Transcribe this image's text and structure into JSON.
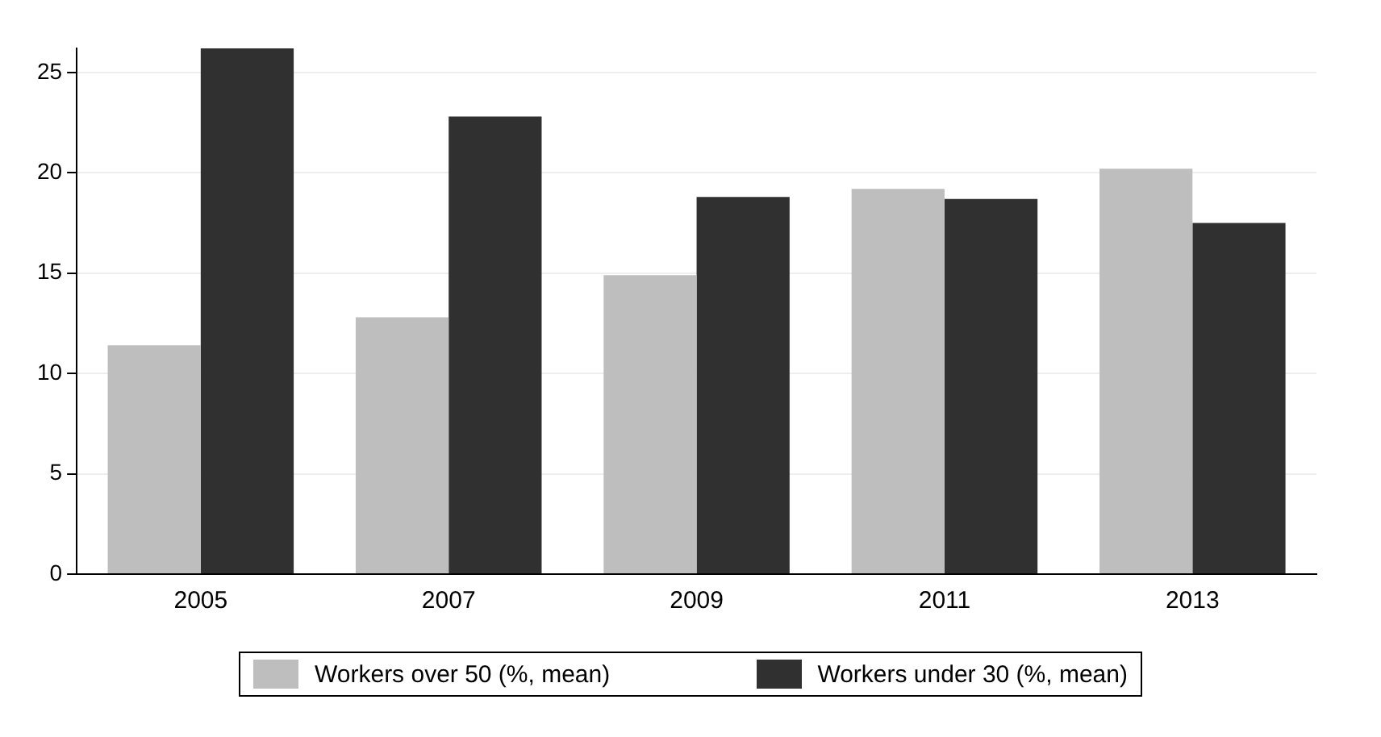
{
  "chart_data": {
    "type": "bar",
    "categories": [
      "2005",
      "2007",
      "2009",
      "2011",
      "2013"
    ],
    "series": [
      {
        "name": "Workers over 50 (%, mean)",
        "color": "#bebebe",
        "values": [
          11.4,
          12.8,
          14.9,
          19.2,
          20.2
        ]
      },
      {
        "name": "Workers under 30 (%, mean)",
        "color": "#303030",
        "values": [
          26.2,
          22.8,
          18.8,
          18.7,
          17.5
        ]
      }
    ],
    "ylim": [
      0,
      26.2
    ],
    "yticks": [
      0,
      5,
      10,
      15,
      20,
      25
    ],
    "grid": "y",
    "legend": "bottom"
  }
}
